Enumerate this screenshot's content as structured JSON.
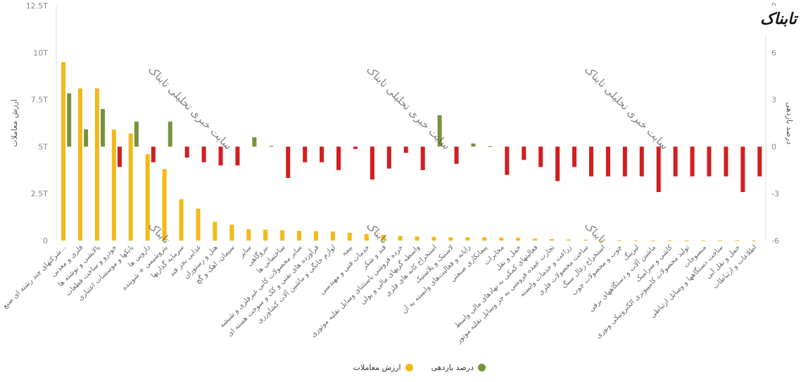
{
  "logo": {
    "text": "تابناک"
  },
  "watermark": "سایت خبری تحلیلی تابناک",
  "watermark_small": "تابناک",
  "chart_data": {
    "type": "bar",
    "left_axis": {
      "title": "ارزش معاملات",
      "ticks": [
        "12.5T",
        "10T",
        "7.5T",
        "5T",
        "2.5T",
        "0"
      ],
      "ylim": [
        0,
        12.5
      ]
    },
    "right_axis": {
      "title": "درصد بازدهی",
      "ticks": [
        "9",
        "6",
        "3",
        "0",
        "-3",
        "-6"
      ],
      "ylim": [
        -6,
        9
      ]
    },
    "categories": [
      "شرکتهای چند رشته ای صنع...",
      "فلزی و معدنی",
      "پالایشی و نوشته ها",
      "خودرو و ساخت قطعات",
      "بانکها و موسسات اعتباری",
      "دارویی ها",
      "پتروشیمی + شوینده",
      "سرمایه گذاریها",
      "غذایی بجز قند",
      "هتل و رستوران",
      "سیمان، اهک و گچ",
      "سایر",
      "نیروگاهی",
      "ساختمانی ها",
      "سایر محصولات کانی غیرفلزی و شیشه",
      "فرآورده های نفتی و کک و سوخت هسته ای",
      "لوازم خانگی و ماشین آلات کشاورزی",
      "بیمه",
      "خدمات فنی و مهندسی",
      "قند و شکر",
      "خرده فروشی باستثنای وسایل نقلیه موتوری",
      "واسطه گریهای مالی و پولی",
      "استخراج کانه های فلزی",
      "لاستیک و پلاستیک",
      "رایانه و فعالیت‌های وابسته به آن",
      "پیمانکاری صنعتی",
      "مخابرات",
      "حمل و نقل",
      "فعالیتهای کمکی به نهادهای مالی واسط",
      "تجارت عمده فروشی به جز وسایل نقلیه موتور",
      "زراعت و خدمات وابسته",
      "ساخت محصولات فلزی",
      "استخراج زغال سنگ",
      "چوب و محصولات چوب",
      "لیزینگ",
      "ماشین آلات و دستگاههای برقی",
      "کاشی و سرامیک",
      "تولید محصولات کامپیوتری الکترونیکی ونوری",
      "منسوجات",
      "ساخت دستگاهها و وسایل ارتباطی",
      "حمل و نقل آبی",
      "اطلاعات و ارتباطات"
    ],
    "series": [
      {
        "name": "ارزش معاملات",
        "axis": "left",
        "color": "#f2b918",
        "unit": "T",
        "values": [
          9.5,
          8.1,
          8.1,
          5.9,
          5.7,
          4.6,
          3.8,
          2.2,
          1.7,
          1.0,
          0.85,
          0.6,
          0.58,
          0.55,
          0.52,
          0.5,
          0.48,
          0.42,
          0.35,
          0.3,
          0.25,
          0.22,
          0.2,
          0.18,
          0.18,
          0.17,
          0.16,
          0.15,
          0.1,
          0.08,
          0.06,
          0.05,
          0.03,
          0.02,
          0.02,
          0.02,
          0.02,
          0.01,
          0.01,
          0.01,
          0.01,
          0.01
        ]
      },
      {
        "name": "درصد بازدهی",
        "axis": "right",
        "colors": {
          "positive": "#76933c",
          "negative": "#d11f1f"
        },
        "values": [
          3.4,
          1.1,
          2.4,
          -1.3,
          1.6,
          -1.0,
          1.6,
          -0.7,
          -1.0,
          -1.2,
          -1.2,
          0.6,
          0.05,
          -2.0,
          -1.0,
          -1.0,
          -1.5,
          -0.15,
          -2.1,
          -1.4,
          -0.4,
          -1.5,
          2.0,
          -1.1,
          0.2,
          0.02,
          -1.8,
          -0.85,
          -1.3,
          -2.2,
          -1.3,
          -1.9,
          -1.9,
          -1.9,
          -1.9,
          -2.9,
          -1.9,
          -1.9,
          -1.9,
          -1.9,
          -2.9,
          -1.9
        ]
      }
    ],
    "grid": false,
    "legend": "bottom"
  }
}
